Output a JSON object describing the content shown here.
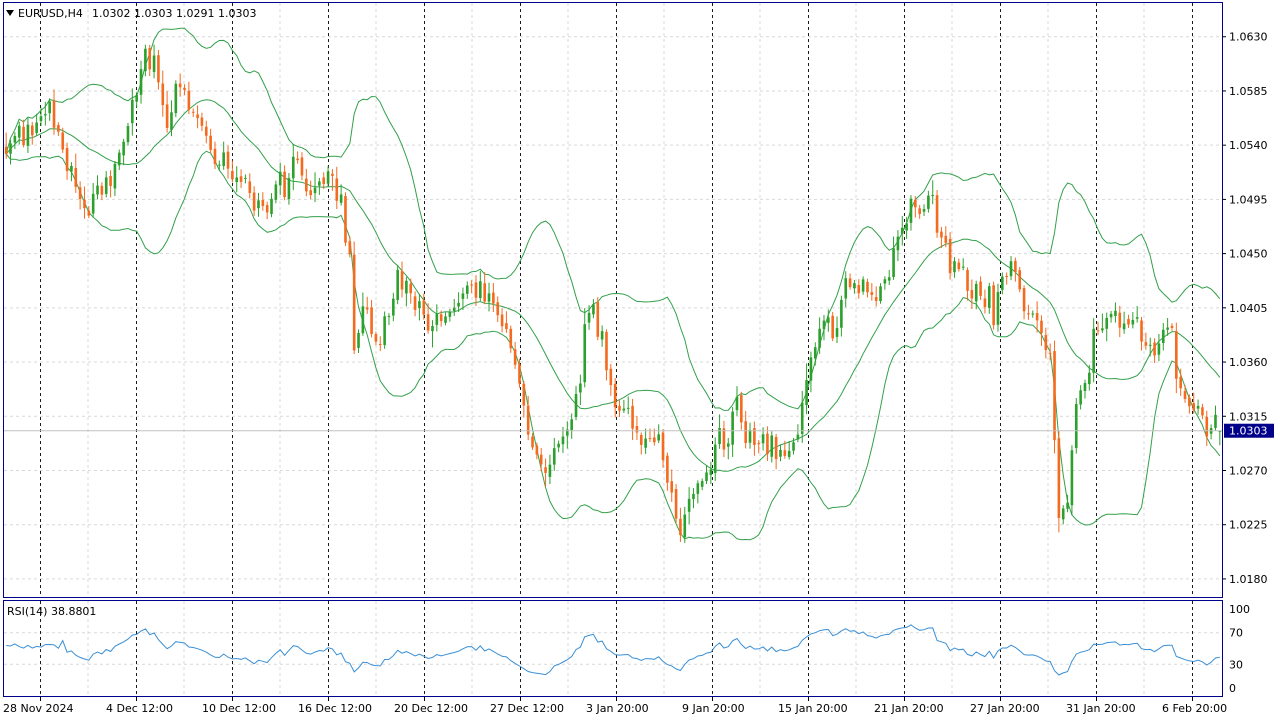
{
  "header": {
    "symbol_label": "EURUSD,H4",
    "ohlc_label": "1.0302 1.0303 1.0291 1.0303"
  },
  "rsi": {
    "label": "RSI(14) 38.8801",
    "levels": [
      "100",
      "70",
      "30",
      "0"
    ]
  },
  "current_price": "1.0303",
  "colors": {
    "bull": "#2ca02c",
    "bear": "#f46a1f",
    "bands": "#33a04a",
    "rsi_line": "#3a8fd6",
    "frame": "#00008b",
    "badge": "#00008b",
    "grid": "#d9d9d9",
    "separator": "#1a1a1a"
  },
  "chart_data": [
    {
      "type": "candlestick",
      "name": "EURUSD,H4",
      "ylim": [
        1.0165,
        1.0658
      ],
      "ytick_labels": [
        "1.0630",
        "1.0585",
        "1.0540",
        "1.0495",
        "1.0450",
        "1.0405",
        "1.0360",
        "1.0315",
        "1.0270",
        "1.0225",
        "1.0180"
      ],
      "ytick_values": [
        1.063,
        1.0585,
        1.054,
        1.0495,
        1.045,
        1.0405,
        1.036,
        1.0315,
        1.027,
        1.0225,
        1.018
      ],
      "xtick_labels": [
        "28 Nov 2024",
        "4 Dec 12:00",
        "10 Dec 12:00",
        "16 Dec 12:00",
        "20 Dec 12:00",
        "27 Dec 12:00",
        "3 Jan 20:00",
        "9 Jan 20:00",
        "15 Jan 20:00",
        "21 Jan 20:00",
        "27 Jan 20:00",
        "31 Jan 20:00",
        "6 Feb 20:00"
      ],
      "close_path": [
        [
          0,
          1.0535
        ],
        [
          5,
          1.0555
        ],
        [
          8,
          1.0568
        ],
        [
          10,
          1.058
        ],
        [
          13,
          1.053
        ],
        [
          16,
          1.0505
        ],
        [
          19,
          1.049
        ],
        [
          22,
          1.0505
        ],
        [
          25,
          1.0525
        ],
        [
          28,
          1.056
        ],
        [
          31,
          1.06
        ],
        [
          34,
          1.0615
        ],
        [
          37,
          1.056
        ],
        [
          40,
          1.0585
        ],
        [
          44,
          1.0565
        ],
        [
          48,
          1.053
        ],
        [
          52,
          1.0525
        ],
        [
          56,
          1.051
        ],
        [
          59,
          1.0475
        ],
        [
          62,
          1.0505
        ],
        [
          66,
          1.052
        ],
        [
          70,
          1.05
        ],
        [
          74,
          1.0505
        ],
        [
          77,
          1.049
        ],
        [
          79,
          1.0445
        ],
        [
          80,
          1.038
        ],
        [
          82,
          1.04
        ],
        [
          85,
          1.0365
        ],
        [
          88,
          1.041
        ],
        [
          91,
          1.043
        ],
        [
          94,
          1.0405
        ],
        [
          97,
          1.039
        ],
        [
          100,
          1.0395
        ],
        [
          103,
          1.0405
        ],
        [
          106,
          1.042
        ],
        [
          109,
          1.0425
        ],
        [
          112,
          1.0405
        ],
        [
          115,
          1.0385
        ],
        [
          118,
          1.0345
        ],
        [
          121,
          1.029
        ],
        [
          124,
          1.027
        ],
        [
          127,
          1.029
        ],
        [
          130,
          1.0305
        ],
        [
          133,
          1.038
        ],
        [
          135,
          1.041
        ],
        [
          138,
          1.036
        ],
        [
          141,
          1.032
        ],
        [
          144,
          1.031
        ],
        [
          147,
          1.03
        ],
        [
          150,
          1.0285
        ],
        [
          153,
          1.0245
        ],
        [
          155,
          1.021
        ],
        [
          157,
          1.024
        ],
        [
          160,
          1.027
        ],
        [
          163,
          1.0295
        ],
        [
          166,
          1.03
        ],
        [
          168,
          1.033
        ],
        [
          170,
          1.029
        ],
        [
          173,
          1.03
        ],
        [
          176,
          1.0295
        ],
        [
          179,
          1.029
        ],
        [
          182,
          1.0305
        ],
        [
          185,
          1.037
        ],
        [
          188,
          1.04
        ],
        [
          190,
          1.038
        ],
        [
          193,
          1.042
        ],
        [
          196,
          1.0425
        ],
        [
          199,
          1.042
        ],
        [
          202,
          1.0425
        ],
        [
          205,
          1.047
        ],
        [
          208,
          1.0495
        ],
        [
          211,
          1.048
        ],
        [
          213,
          1.05
        ],
        [
          215,
          1.0465
        ],
        [
          218,
          1.044
        ],
        [
          221,
          1.043
        ],
        [
          224,
          1.042
        ],
        [
          227,
          1.04
        ],
        [
          230,
          1.043
        ],
        [
          232,
          1.0445
        ],
        [
          234,
          1.04
        ],
        [
          236,
          1.0395
        ],
        [
          238,
          1.0385
        ],
        [
          240,
          1.036
        ],
        [
          242,
          1.023
        ],
        [
          244,
          1.025
        ],
        [
          246,
          1.033
        ],
        [
          248,
          1.035
        ],
        [
          250,
          1.038
        ],
        [
          252,
          1.0385
        ],
        [
          254,
          1.039
        ],
        [
          256,
          1.0395
        ],
        [
          258,
          1.04
        ],
        [
          260,
          1.0395
        ],
        [
          262,
          1.038
        ],
        [
          264,
          1.0375
        ],
        [
          266,
          1.039
        ],
        [
          268,
          1.038
        ],
        [
          270,
          1.033
        ],
        [
          272,
          1.032
        ],
        [
          274,
          1.0315
        ],
        [
          276,
          1.031
        ],
        [
          279,
          1.0303
        ]
      ],
      "band_period": 20,
      "band_deviation": 2,
      "last": {
        "open": 1.0302,
        "high": 1.0303,
        "low": 1.0291,
        "close": 1.0303
      }
    },
    {
      "type": "line",
      "name": "RSI(14)",
      "ylim": [
        0,
        100
      ],
      "ytick_labels": [
        "100",
        "70",
        "30",
        "0"
      ],
      "ytick_values": [
        100,
        70,
        30,
        0
      ],
      "last_value": 38.8801
    }
  ]
}
